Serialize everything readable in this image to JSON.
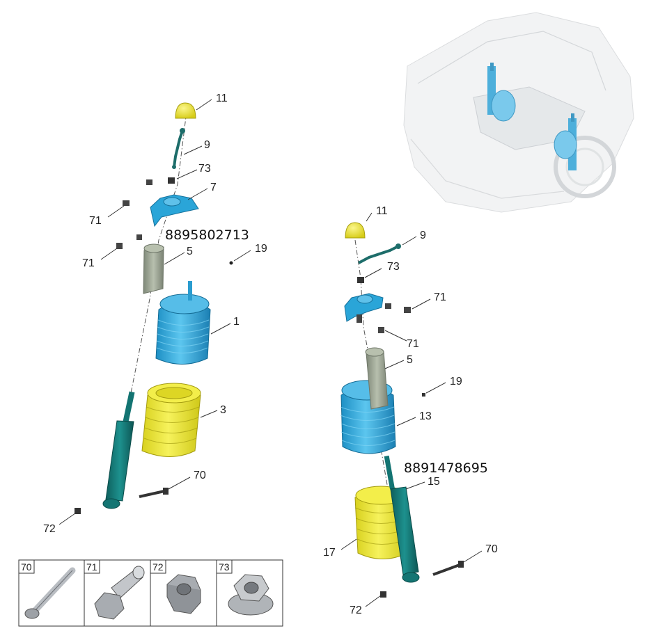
{
  "left_assembly": {
    "part_number": "8895802713",
    "callouts": {
      "c11": "11",
      "c9": "9",
      "c73": "73",
      "c7": "7",
      "c71a": "71",
      "c71b": "71",
      "c5": "5",
      "c19": "19",
      "c1": "1",
      "c3": "3",
      "c70": "70",
      "c72": "72"
    }
  },
  "right_assembly": {
    "part_number": "8891478695",
    "callouts": {
      "c11": "11",
      "c9": "9",
      "c73": "73",
      "c71a": "71",
      "c71b": "71",
      "c5": "5",
      "c19": "19",
      "c13": "13",
      "c15": "15",
      "c17": "17",
      "c70": "70",
      "c72": "72"
    }
  },
  "legend": {
    "items": [
      {
        "num": "70",
        "icon": "bolt-long-icon"
      },
      {
        "num": "71",
        "icon": "bolt-flange-icon"
      },
      {
        "num": "72",
        "icon": "nut-icon"
      },
      {
        "num": "73",
        "icon": "flange-nut-icon"
      }
    ]
  },
  "colors": {
    "blue_part": "#2aa5d8",
    "yellow_part": "#e8e23a",
    "teal_damper": "#157a78",
    "gray_bumper": "#9aa294"
  }
}
